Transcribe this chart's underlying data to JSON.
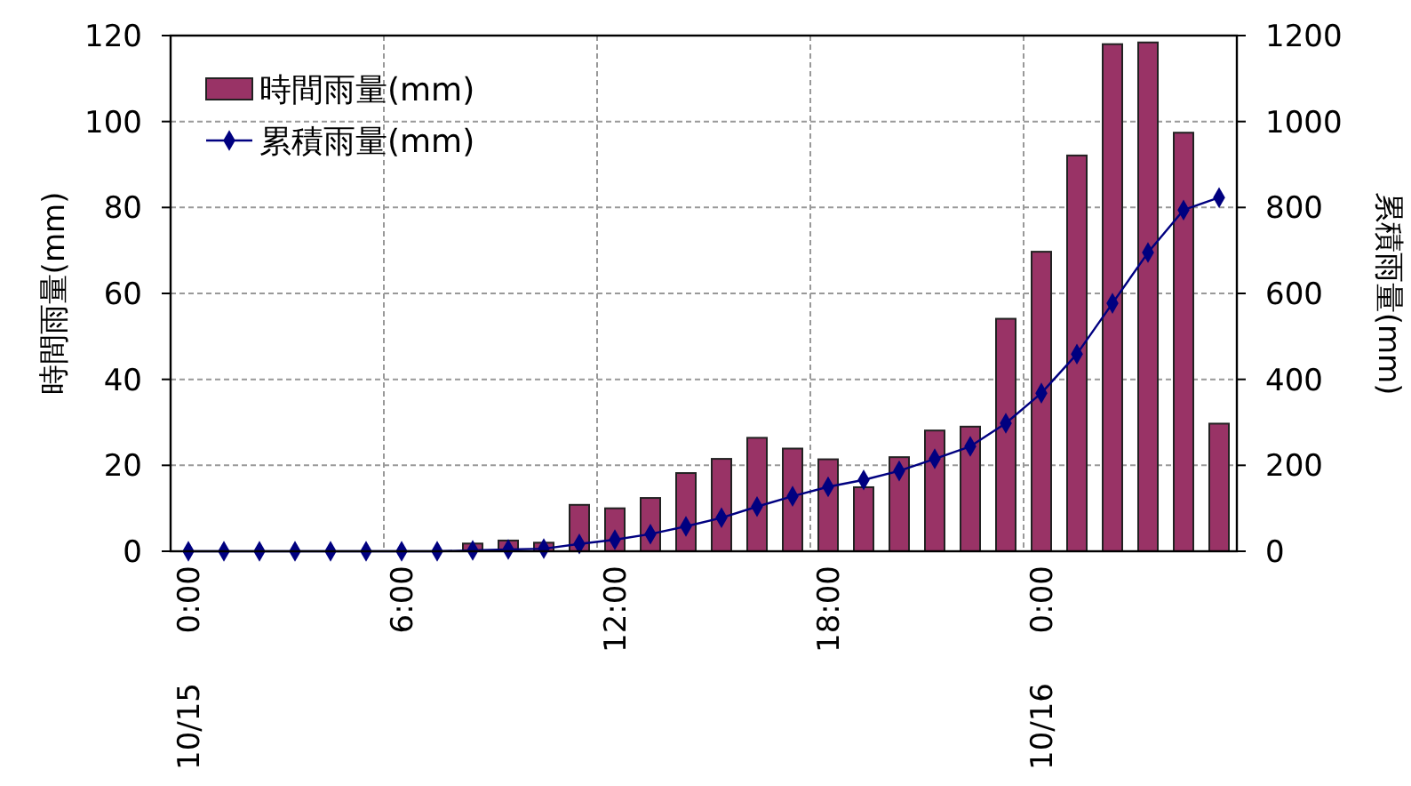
{
  "chart_data": {
    "type": "bar",
    "categories": [
      "0:00",
      null,
      null,
      null,
      null,
      null,
      "6:00",
      null,
      null,
      null,
      null,
      null,
      "12:00",
      null,
      null,
      null,
      null,
      null,
      "18:00",
      null,
      null,
      null,
      null,
      null,
      "0:00",
      null,
      null,
      null,
      null,
      null
    ],
    "series": [
      {
        "name": "時間雨量(mm)",
        "color": "#993366",
        "values": [
          0,
          0,
          0,
          0,
          0,
          0,
          0,
          0,
          1.8,
          2.5,
          2,
          10.8,
          10,
          12.4,
          18.2,
          21.5,
          26.4,
          23.9,
          21.4,
          14.9,
          21.9,
          28.1,
          29,
          54.1,
          69.7,
          92.1,
          118,
          118.4,
          97.4,
          29.7
        ]
      },
      {
        "name": "累積雨量(mm)",
        "type": "line",
        "axis": "y2",
        "color": "#000080",
        "marker": "diamond",
        "values": [
          0,
          0,
          0,
          0,
          0,
          0,
          0,
          0,
          2,
          4,
          6,
          17,
          27,
          40,
          58,
          78,
          104,
          128,
          150,
          166,
          187,
          215,
          244,
          298,
          368,
          459,
          577,
          695,
          794,
          823
        ]
      }
    ],
    "ylabel": "時間雨量(mm)",
    "y2label": "累積雨量(mm)",
    "ylim": [
      0,
      120
    ],
    "yticks": [
      0,
      20,
      40,
      60,
      80,
      100,
      120
    ],
    "y2lim": [
      0,
      1200
    ],
    "y2ticks": [
      0,
      200,
      400,
      600,
      800,
      1000,
      1200
    ],
    "annotations": [
      "10/15",
      "10/16"
    ],
    "grid": true,
    "legend": "top left"
  }
}
